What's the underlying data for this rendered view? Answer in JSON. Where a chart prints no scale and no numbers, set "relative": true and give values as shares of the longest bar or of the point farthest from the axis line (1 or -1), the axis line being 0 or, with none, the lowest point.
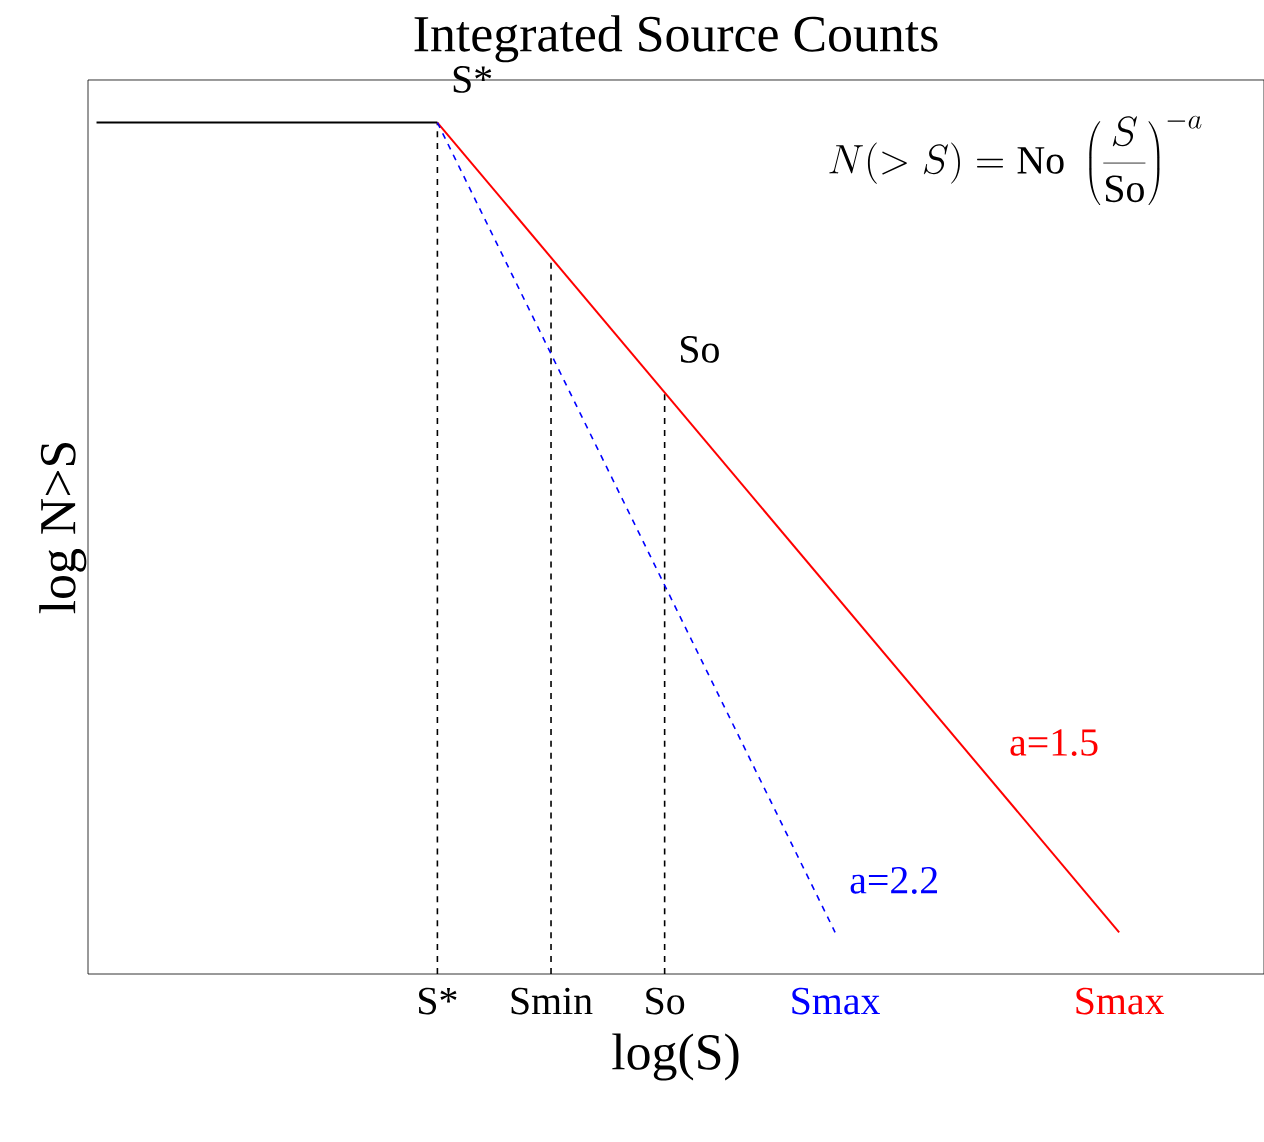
{
  "chart_data": {
    "type": "line",
    "relative": true,
    "title": "Integrated Source Counts",
    "xlabel": "log(S)",
    "ylabel": "log N>S",
    "tick_labels": "x",
    "categories": [
      null,
      null,
      null,
      null,
      null,
      null,
      "S*",
      null,
      "Smin",
      null,
      "So",
      null,
      null,
      "Smax",
      null,
      null,
      null,
      null,
      "Smax"
    ],
    "series": [
      {
        "color": "#000000",
        "values": [
          1,
          null,
          null,
          null,
          null,
          null,
          1,
          null,
          null,
          null,
          null,
          null,
          null,
          null,
          null,
          null,
          null,
          null,
          null
        ]
      },
      {
        "name": "a=1.5",
        "color": "#ff0000",
        "values": [
          null,
          null,
          null,
          null,
          null,
          null,
          1,
          null,
          null,
          null,
          null,
          null,
          null,
          null,
          null,
          null,
          null,
          null,
          0.049
        ]
      },
      {
        "name": "a=2.2",
        "color": "#0000ff",
        "line_style": "dashed",
        "values": [
          null,
          null,
          null,
          null,
          null,
          null,
          1,
          null,
          null,
          null,
          null,
          null,
          null,
          0.049,
          null,
          null,
          null,
          null,
          null
        ]
      }
    ],
    "ref_lines": [
      {
        "axis": "x",
        "value": "S*",
        "color": "#000000",
        "line_style": "dashed"
      },
      {
        "axis": "x",
        "value": "Smin",
        "color": "#000000",
        "line_style": "dashed"
      },
      {
        "axis": "x",
        "value": "So",
        "color": "#000000",
        "line_style": "dashed"
      }
    ],
    "annotations": [
      "N(>S) = \\mathrm{No}\\;\\left(\\frac{S}{\\mathrm{So}}\\right)^{-a}",
      {
        "text": "S*",
        "x": "S*",
        "y": 1
      },
      {
        "text": "So",
        "x": "So",
        "y": 0.683
      }
    ]
  }
}
